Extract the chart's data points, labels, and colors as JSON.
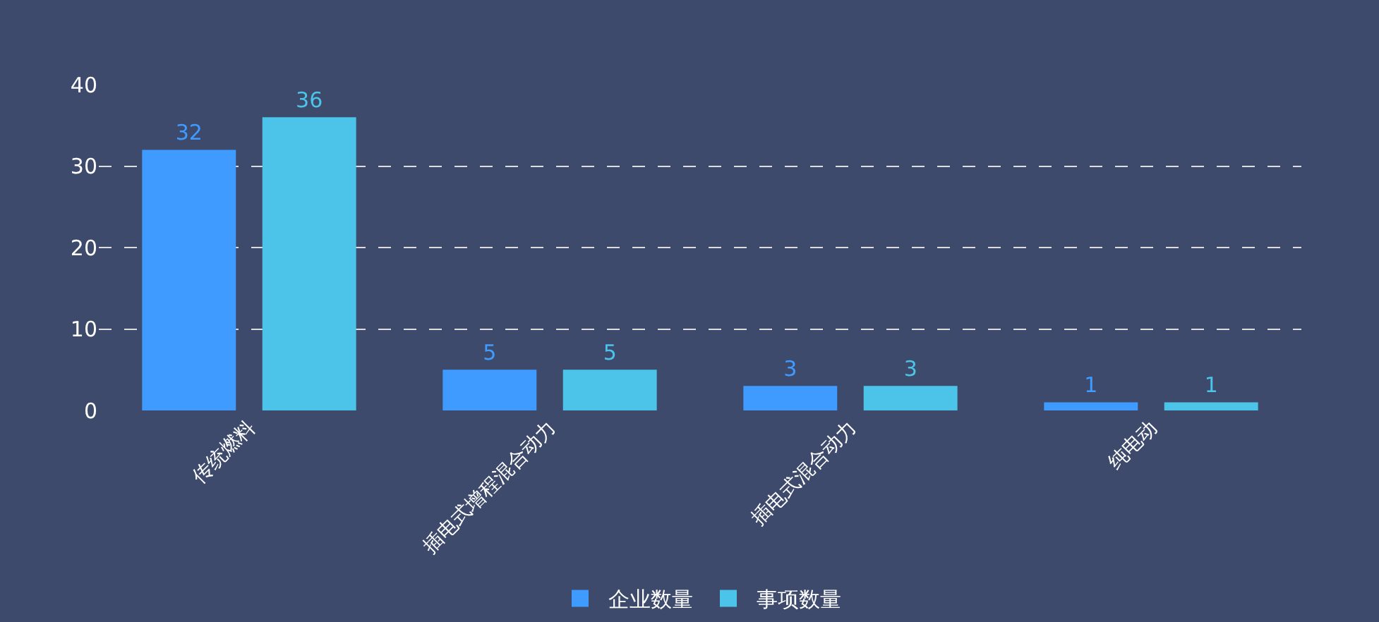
{
  "chart_data": {
    "type": "bar",
    "categories": [
      "传统燃料",
      "插电式增程混合动力",
      "插电式混合动力",
      "纯电动"
    ],
    "series": [
      {
        "name": "企业数量",
        "color": "#3f9bff",
        "values": [
          32,
          5,
          3,
          1
        ]
      },
      {
        "name": "事项数量",
        "color": "#4cc3e8",
        "values": [
          36,
          5,
          3,
          1
        ]
      }
    ],
    "ylim": [
      0,
      40
    ],
    "yticks": [
      0,
      10,
      20,
      30,
      40
    ],
    "grid": "y",
    "legend": "bottom",
    "data_labels": true
  }
}
